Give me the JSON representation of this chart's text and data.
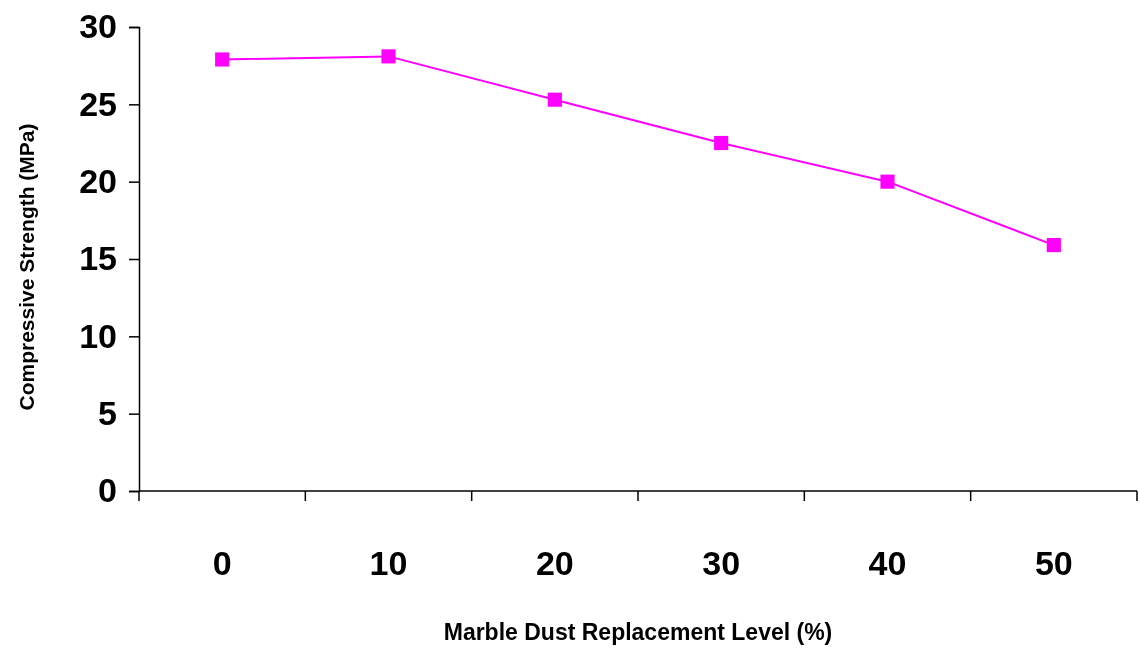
{
  "chart_data": {
    "type": "line",
    "xlabel": "Marble Dust Replacement Level (%)",
    "ylabel": "Compressive Strength (MPa)",
    "categories": [
      "0",
      "10",
      "20",
      "30",
      "40",
      "50"
    ],
    "series": [
      {
        "color": "#ff00ff",
        "values": [
          27.9,
          28.1,
          25.3,
          22.5,
          20.0,
          15.9
        ]
      }
    ],
    "ylim": [
      0,
      30
    ],
    "yticks": [
      0,
      5,
      10,
      15,
      20,
      25,
      30
    ],
    "marker": "square",
    "line_style": "solid"
  }
}
